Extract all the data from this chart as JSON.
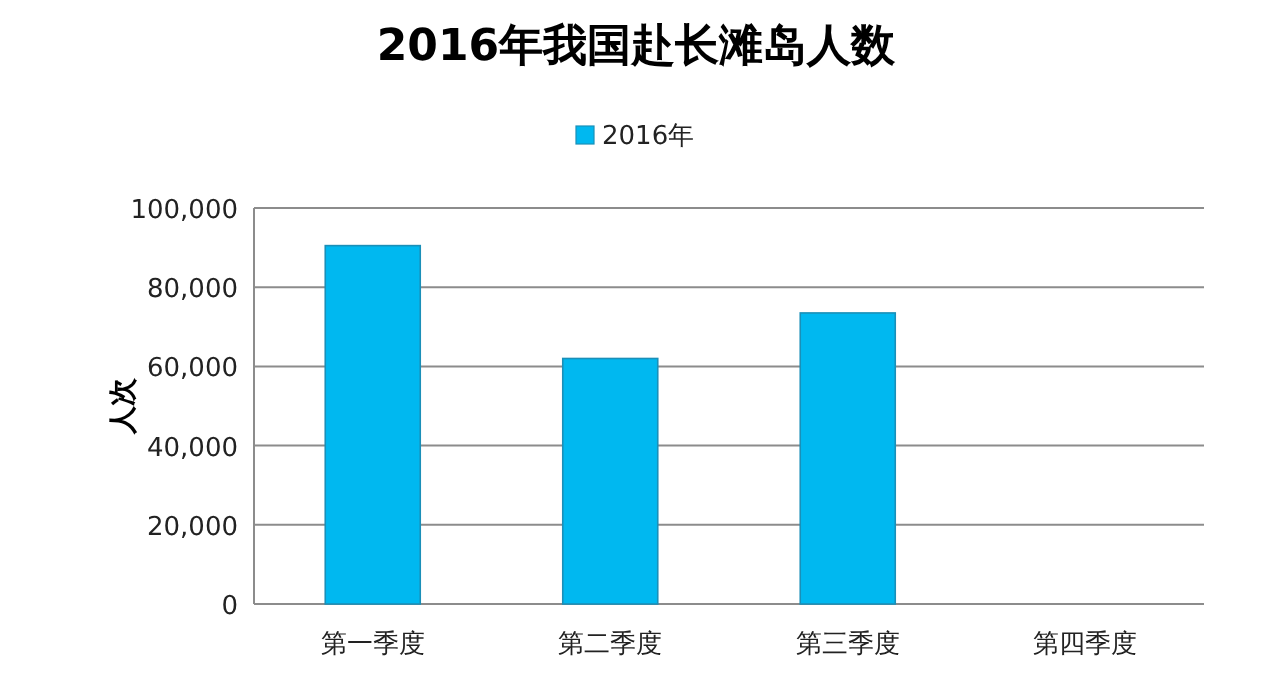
{
  "chart_data": {
    "type": "bar",
    "title": "2016年我国赴长滩岛人数",
    "ylabel": "人次",
    "categories": [
      "第一季度",
      "第二季度",
      "第三季度",
      "第四季度"
    ],
    "series": [
      {
        "name": "2016年",
        "color": "#00b8f0",
        "values": [
          90500,
          62000,
          73500,
          null
        ]
      }
    ],
    "ylim": [
      0,
      100000
    ],
    "yticks": [
      {
        "value": 0,
        "label": "0"
      },
      {
        "value": 20000,
        "label": "20,000"
      },
      {
        "value": 40000,
        "label": "40,000"
      },
      {
        "value": 60000,
        "label": "60,000"
      },
      {
        "value": 80000,
        "label": "80,000"
      },
      {
        "value": 100000,
        "label": "100,000"
      }
    ],
    "grid": "y",
    "legend": "top"
  }
}
